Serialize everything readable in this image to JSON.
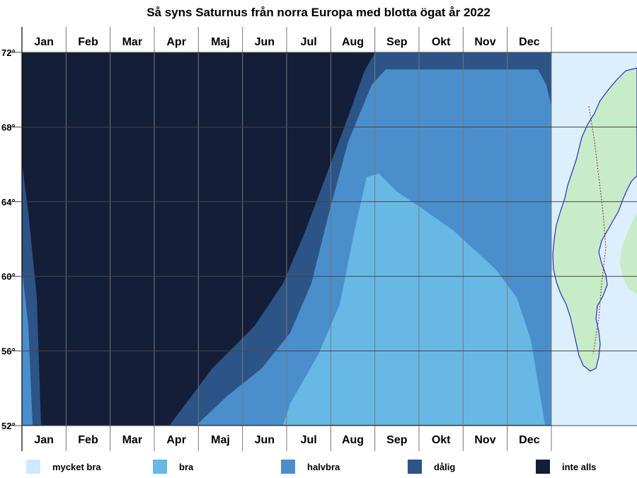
{
  "chart_data": {
    "type": "heatmap",
    "title": "Så syns Saturnus från norra Europa med blotta ögat år 2022",
    "x_categories": [
      "Jan",
      "Feb",
      "Mar",
      "Apr",
      "Maj",
      "Jun",
      "Jul",
      "Aug",
      "Sep",
      "Okt",
      "Nov",
      "Dec"
    ],
    "y_ticks": [
      "72°",
      "68°",
      "64°",
      "60°",
      "56°",
      "52°"
    ],
    "y_values": [
      72,
      68,
      64,
      60,
      56,
      52
    ],
    "ylim": [
      52,
      72
    ],
    "xlim_days": [
      0,
      365
    ],
    "levels": [
      {
        "label": "mycket bra",
        "color": "#cfe8fa"
      },
      {
        "label": "bra",
        "color": "#68b8e6"
      },
      {
        "label": "halvbra",
        "color": "#4a8fcc"
      },
      {
        "label": "dålig",
        "color": "#2c5486"
      },
      {
        "label": "inte alls",
        "color": "#141e38"
      }
    ],
    "legend_position": "bottom",
    "grid": true,
    "map_colors": {
      "sea": "#dcefff",
      "land": "#c8ecc8",
      "border": "#2a2acc"
    }
  }
}
